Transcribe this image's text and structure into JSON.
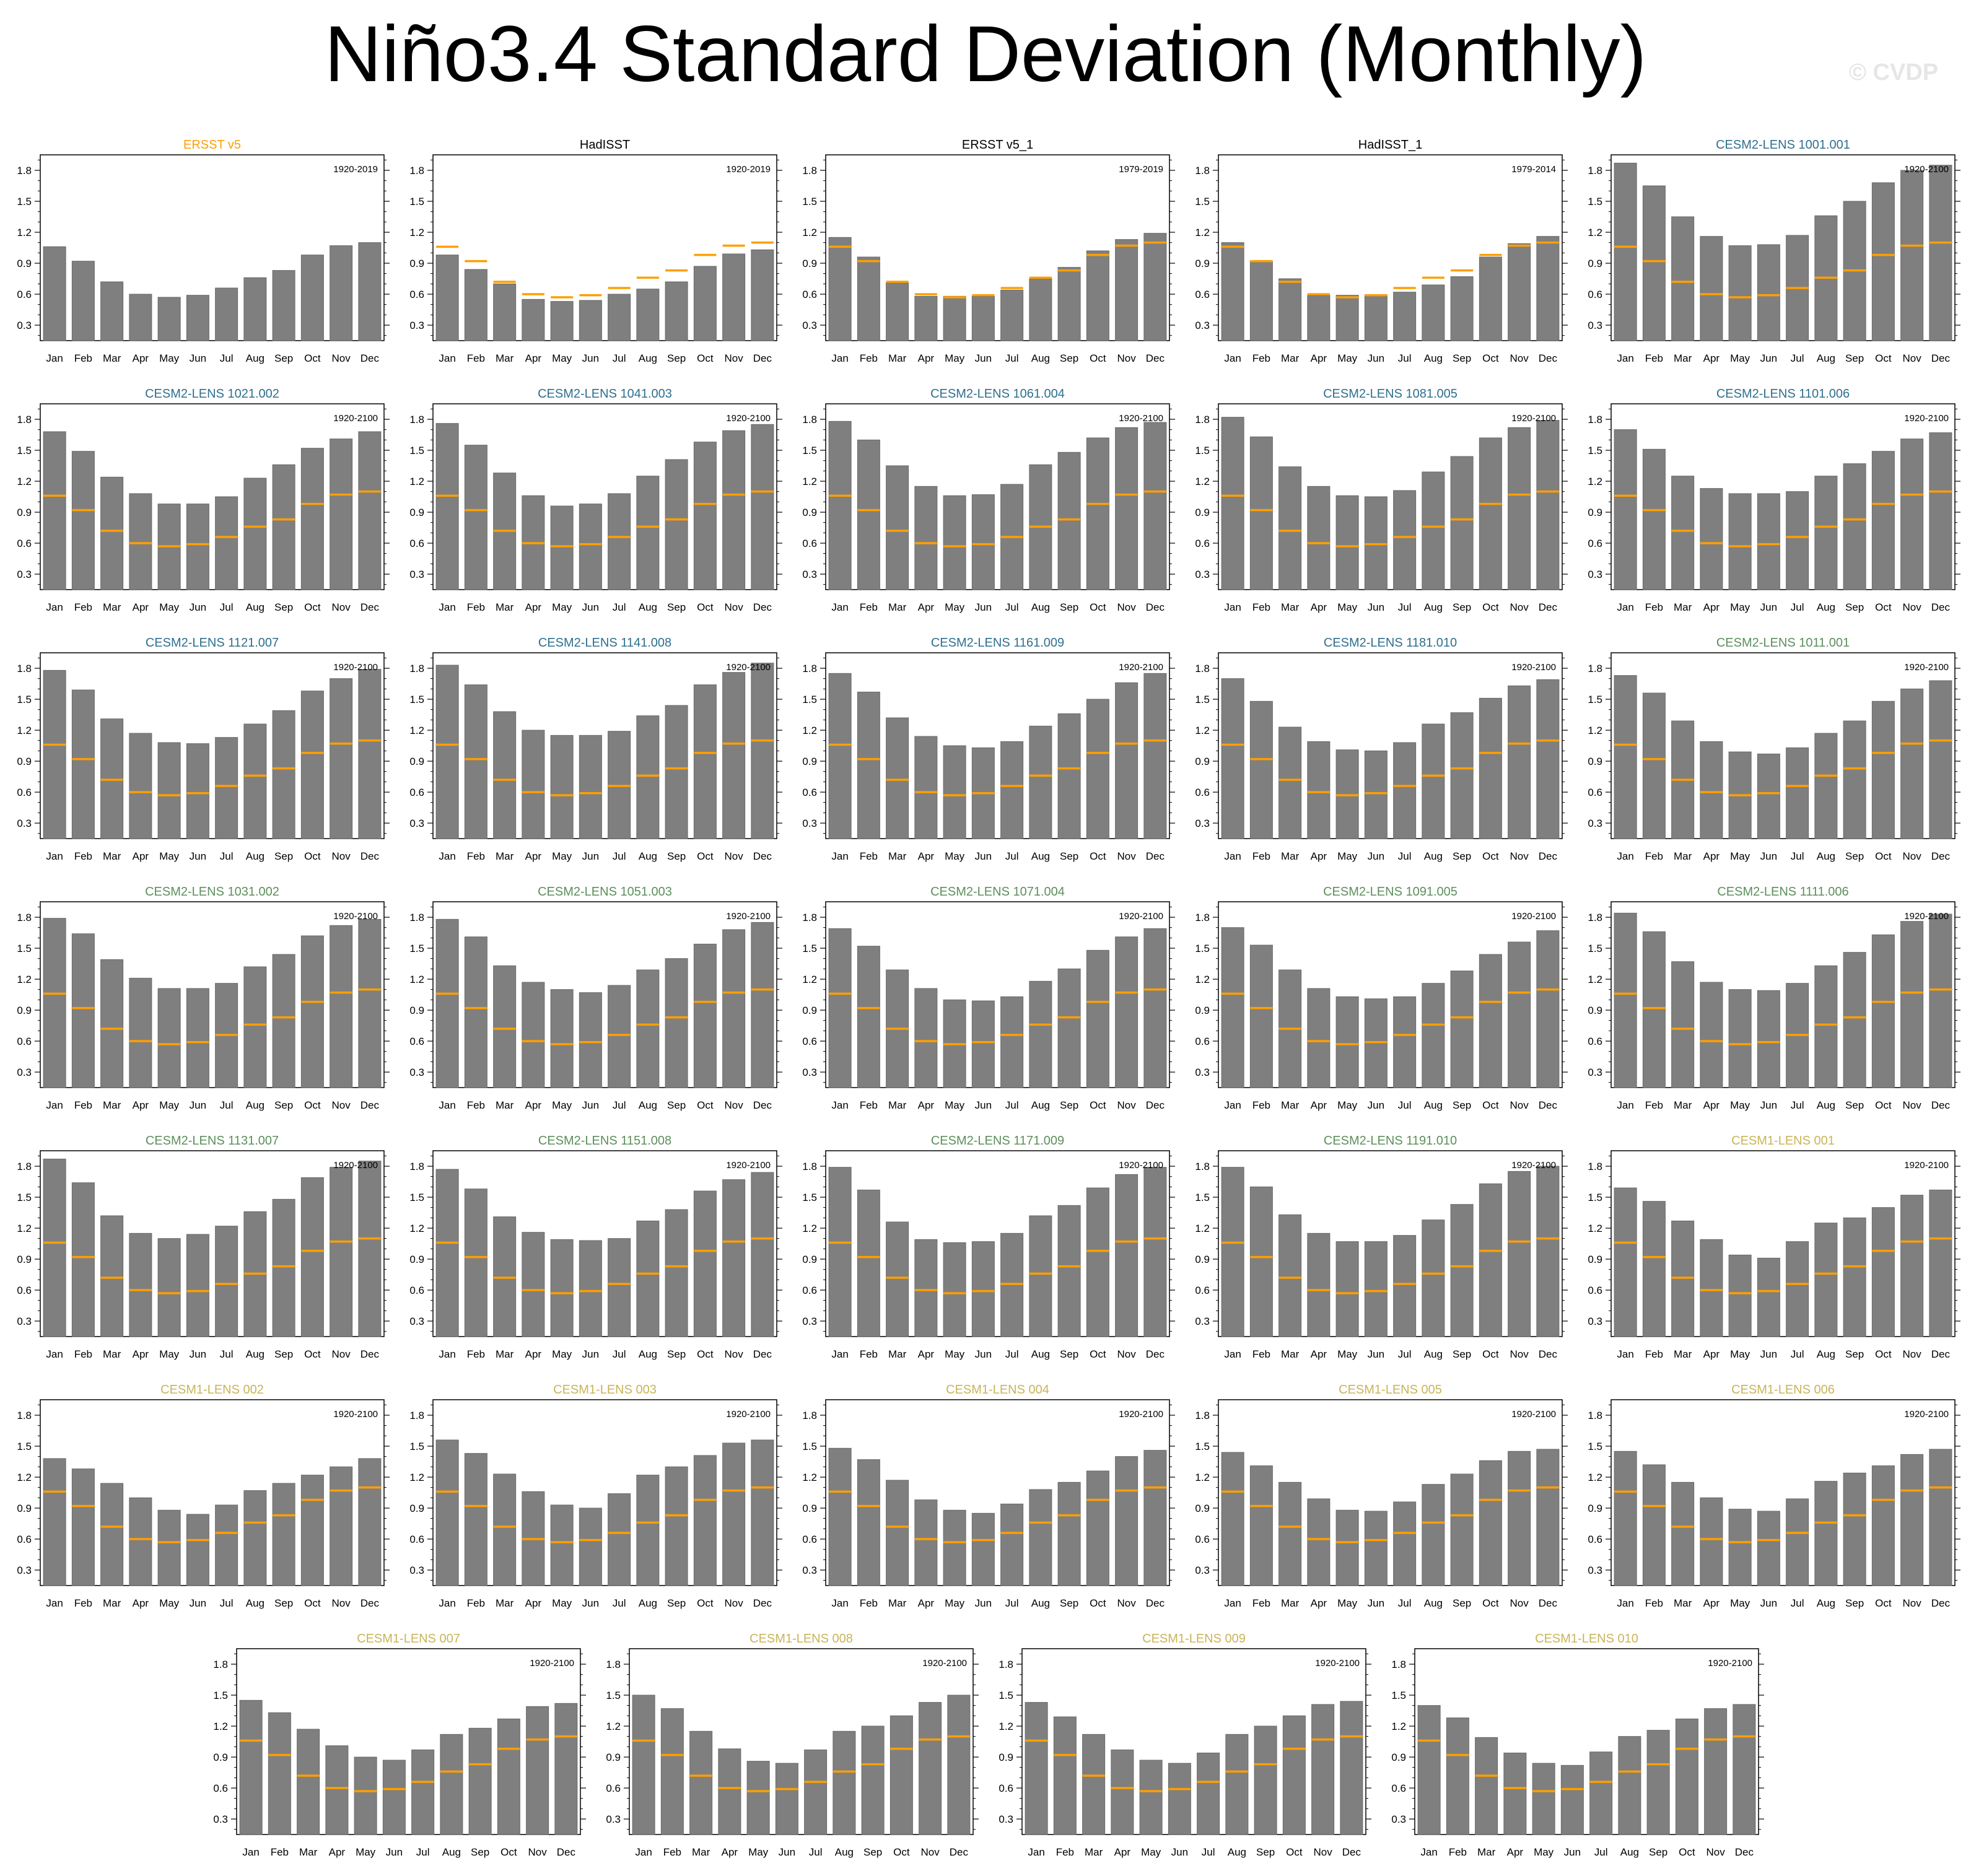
{
  "title": "Niño3.4 Standard Deviation (Monthly)",
  "watermark": "© CVDP",
  "colors": {
    "bar": "#7f7f7f",
    "obs_line": "#ff9f00",
    "title_obs_ersst": "#ff9f00",
    "title_obs_other": "#000000",
    "title_cesm2_blue": "#2e6f8e",
    "title_cesm2_green": "#5c8f5c",
    "title_cesm1": "#c9b458"
  },
  "chart_data": {
    "type": "bar",
    "months": [
      "Jan",
      "Feb",
      "Mar",
      "Apr",
      "May",
      "Jun",
      "Jul",
      "Aug",
      "Sep",
      "Oct",
      "Nov",
      "Dec"
    ],
    "yticks": [
      "0.3",
      "0.6",
      "0.9",
      "1.2",
      "1.5",
      "1.8"
    ],
    "ylim": [
      0.15,
      1.95
    ],
    "reference_line": [
      1.06,
      0.92,
      0.72,
      0.6,
      0.57,
      0.59,
      0.66,
      0.76,
      0.83,
      0.98,
      1.07,
      1.1
    ],
    "panels": [
      {
        "title": "ERSST v5",
        "title_color": "obs_ersst",
        "period": "1920-2019",
        "ref": false,
        "values": [
          1.06,
          0.92,
          0.72,
          0.6,
          0.57,
          0.59,
          0.66,
          0.76,
          0.83,
          0.98,
          1.07,
          1.1
        ]
      },
      {
        "title": "HadISST",
        "title_color": "obs_other",
        "period": "1920-2019",
        "ref": true,
        "values": [
          0.98,
          0.84,
          0.7,
          0.55,
          0.53,
          0.54,
          0.6,
          0.65,
          0.72,
          0.87,
          0.99,
          1.03
        ]
      },
      {
        "title": "ERSST v5_1",
        "title_color": "obs_other",
        "period": "1979-2019",
        "ref": true,
        "values": [
          1.15,
          0.96,
          0.71,
          0.58,
          0.58,
          0.58,
          0.64,
          0.75,
          0.86,
          1.02,
          1.13,
          1.19
        ]
      },
      {
        "title": "HadISST_1",
        "title_color": "obs_other",
        "period": "1979-2014",
        "ref": true,
        "values": [
          1.1,
          0.92,
          0.75,
          0.59,
          0.59,
          0.59,
          0.62,
          0.69,
          0.77,
          0.96,
          1.09,
          1.16
        ]
      },
      {
        "title": "CESM2-LENS 1001.001",
        "title_color": "cesm2_blue",
        "period": "1920-2100",
        "ref": true,
        "values": [
          1.87,
          1.65,
          1.35,
          1.16,
          1.07,
          1.08,
          1.17,
          1.36,
          1.5,
          1.68,
          1.8,
          1.85
        ]
      },
      {
        "title": "CESM2-LENS 1021.002",
        "title_color": "cesm2_blue",
        "period": "1920-2100",
        "ref": true,
        "values": [
          1.68,
          1.49,
          1.24,
          1.08,
          0.98,
          0.98,
          1.05,
          1.23,
          1.36,
          1.52,
          1.61,
          1.68
        ]
      },
      {
        "title": "CESM2-LENS 1041.003",
        "title_color": "cesm2_blue",
        "period": "1920-2100",
        "ref": true,
        "values": [
          1.76,
          1.55,
          1.28,
          1.06,
          0.96,
          0.98,
          1.08,
          1.25,
          1.41,
          1.58,
          1.69,
          1.75
        ]
      },
      {
        "title": "CESM2-LENS 1061.004",
        "title_color": "cesm2_blue",
        "period": "1920-2100",
        "ref": true,
        "values": [
          1.78,
          1.6,
          1.35,
          1.15,
          1.06,
          1.07,
          1.17,
          1.36,
          1.48,
          1.62,
          1.72,
          1.77
        ]
      },
      {
        "title": "CESM2-LENS 1081.005",
        "title_color": "cesm2_blue",
        "period": "1920-2100",
        "ref": true,
        "values": [
          1.82,
          1.63,
          1.34,
          1.15,
          1.06,
          1.05,
          1.11,
          1.29,
          1.44,
          1.62,
          1.72,
          1.79
        ]
      },
      {
        "title": "CESM2-LENS 1101.006",
        "title_color": "cesm2_blue",
        "period": "1920-2100",
        "ref": true,
        "values": [
          1.7,
          1.51,
          1.25,
          1.13,
          1.08,
          1.08,
          1.1,
          1.25,
          1.37,
          1.49,
          1.61,
          1.67
        ]
      },
      {
        "title": "CESM2-LENS 1121.007",
        "title_color": "cesm2_blue",
        "period": "1920-2100",
        "ref": true,
        "values": [
          1.78,
          1.59,
          1.31,
          1.17,
          1.08,
          1.07,
          1.13,
          1.26,
          1.39,
          1.58,
          1.7,
          1.79
        ]
      },
      {
        "title": "CESM2-LENS 1141.008",
        "title_color": "cesm2_blue",
        "period": "1920-2100",
        "ref": true,
        "values": [
          1.83,
          1.64,
          1.38,
          1.2,
          1.15,
          1.15,
          1.19,
          1.34,
          1.44,
          1.64,
          1.76,
          1.85
        ]
      },
      {
        "title": "CESM2-LENS 1161.009",
        "title_color": "cesm2_blue",
        "period": "1920-2100",
        "ref": true,
        "values": [
          1.75,
          1.57,
          1.32,
          1.14,
          1.05,
          1.03,
          1.09,
          1.24,
          1.36,
          1.5,
          1.66,
          1.75
        ]
      },
      {
        "title": "CESM2-LENS 1181.010",
        "title_color": "cesm2_blue",
        "period": "1920-2100",
        "ref": true,
        "values": [
          1.7,
          1.48,
          1.23,
          1.09,
          1.01,
          1.0,
          1.08,
          1.26,
          1.37,
          1.51,
          1.63,
          1.69
        ]
      },
      {
        "title": "CESM2-LENS 1011.001",
        "title_color": "cesm2_green",
        "period": "1920-2100",
        "ref": true,
        "values": [
          1.73,
          1.56,
          1.29,
          1.09,
          0.99,
          0.97,
          1.03,
          1.17,
          1.29,
          1.48,
          1.6,
          1.68
        ]
      },
      {
        "title": "CESM2-LENS 1031.002",
        "title_color": "cesm2_green",
        "period": "1920-2100",
        "ref": true,
        "values": [
          1.79,
          1.64,
          1.39,
          1.21,
          1.11,
          1.11,
          1.16,
          1.32,
          1.44,
          1.62,
          1.72,
          1.78
        ]
      },
      {
        "title": "CESM2-LENS 1051.003",
        "title_color": "cesm2_green",
        "period": "1920-2100",
        "ref": true,
        "values": [
          1.78,
          1.61,
          1.33,
          1.17,
          1.1,
          1.07,
          1.14,
          1.29,
          1.4,
          1.54,
          1.68,
          1.75
        ]
      },
      {
        "title": "CESM2-LENS 1071.004",
        "title_color": "cesm2_green",
        "period": "1920-2100",
        "ref": true,
        "values": [
          1.69,
          1.52,
          1.29,
          1.11,
          1.0,
          0.99,
          1.03,
          1.18,
          1.3,
          1.48,
          1.61,
          1.69
        ]
      },
      {
        "title": "CESM2-LENS 1091.005",
        "title_color": "cesm2_green",
        "period": "1920-2100",
        "ref": true,
        "values": [
          1.7,
          1.53,
          1.29,
          1.11,
          1.03,
          1.01,
          1.03,
          1.16,
          1.28,
          1.44,
          1.56,
          1.67
        ]
      },
      {
        "title": "CESM2-LENS 1111.006",
        "title_color": "cesm2_green",
        "period": "1920-2100",
        "ref": true,
        "values": [
          1.84,
          1.66,
          1.37,
          1.17,
          1.1,
          1.09,
          1.16,
          1.33,
          1.46,
          1.63,
          1.76,
          1.83
        ]
      },
      {
        "title": "CESM2-LENS 1131.007",
        "title_color": "cesm2_green",
        "period": "1920-2100",
        "ref": true,
        "values": [
          1.87,
          1.64,
          1.32,
          1.15,
          1.1,
          1.14,
          1.22,
          1.36,
          1.48,
          1.69,
          1.79,
          1.85
        ]
      },
      {
        "title": "CESM2-LENS 1151.008",
        "title_color": "cesm2_green",
        "period": "1920-2100",
        "ref": true,
        "values": [
          1.77,
          1.58,
          1.31,
          1.16,
          1.09,
          1.08,
          1.1,
          1.27,
          1.38,
          1.56,
          1.67,
          1.74
        ]
      },
      {
        "title": "CESM2-LENS 1171.009",
        "title_color": "cesm2_green",
        "period": "1920-2100",
        "ref": true,
        "values": [
          1.79,
          1.57,
          1.26,
          1.09,
          1.06,
          1.07,
          1.15,
          1.32,
          1.42,
          1.59,
          1.72,
          1.79
        ]
      },
      {
        "title": "CESM2-LENS 1191.010",
        "title_color": "cesm2_green",
        "period": "1920-2100",
        "ref": true,
        "values": [
          1.79,
          1.6,
          1.33,
          1.15,
          1.07,
          1.07,
          1.13,
          1.28,
          1.43,
          1.63,
          1.75,
          1.8
        ]
      },
      {
        "title": "CESM1-LENS 001",
        "title_color": "cesm1",
        "period": "1920-2100",
        "ref": true,
        "values": [
          1.59,
          1.46,
          1.27,
          1.09,
          0.94,
          0.91,
          1.07,
          1.25,
          1.3,
          1.4,
          1.52,
          1.57
        ]
      },
      {
        "title": "CESM1-LENS 002",
        "title_color": "cesm1",
        "period": "1920-2100",
        "ref": true,
        "values": [
          1.38,
          1.28,
          1.14,
          1.0,
          0.88,
          0.84,
          0.93,
          1.07,
          1.14,
          1.22,
          1.3,
          1.38
        ]
      },
      {
        "title": "CESM1-LENS 003",
        "title_color": "cesm1",
        "period": "1920-2100",
        "ref": true,
        "values": [
          1.56,
          1.43,
          1.23,
          1.06,
          0.93,
          0.9,
          1.04,
          1.22,
          1.3,
          1.41,
          1.53,
          1.56
        ]
      },
      {
        "title": "CESM1-LENS 004",
        "title_color": "cesm1",
        "period": "1920-2100",
        "ref": true,
        "values": [
          1.48,
          1.37,
          1.17,
          0.98,
          0.88,
          0.85,
          0.94,
          1.08,
          1.15,
          1.26,
          1.4,
          1.46
        ]
      },
      {
        "title": "CESM1-LENS 005",
        "title_color": "cesm1",
        "period": "1920-2100",
        "ref": true,
        "values": [
          1.44,
          1.31,
          1.15,
          0.99,
          0.88,
          0.87,
          0.96,
          1.13,
          1.23,
          1.36,
          1.45,
          1.47
        ]
      },
      {
        "title": "CESM1-LENS 006",
        "title_color": "cesm1",
        "period": "1920-2100",
        "ref": true,
        "values": [
          1.45,
          1.32,
          1.15,
          1.0,
          0.89,
          0.87,
          0.99,
          1.16,
          1.24,
          1.31,
          1.42,
          1.47
        ]
      },
      {
        "title": "CESM1-LENS 007",
        "title_color": "cesm1",
        "period": "1920-2100",
        "ref": true,
        "values": [
          1.45,
          1.33,
          1.17,
          1.01,
          0.9,
          0.87,
          0.97,
          1.12,
          1.18,
          1.27,
          1.39,
          1.42
        ]
      },
      {
        "title": "CESM1-LENS 008",
        "title_color": "cesm1",
        "period": "1920-2100",
        "ref": true,
        "values": [
          1.5,
          1.37,
          1.15,
          0.98,
          0.86,
          0.84,
          0.97,
          1.15,
          1.2,
          1.3,
          1.43,
          1.5
        ]
      },
      {
        "title": "CESM1-LENS 009",
        "title_color": "cesm1",
        "period": "1920-2100",
        "ref": true,
        "values": [
          1.43,
          1.29,
          1.12,
          0.97,
          0.87,
          0.84,
          0.94,
          1.12,
          1.2,
          1.3,
          1.41,
          1.44
        ]
      },
      {
        "title": "CESM1-LENS 010",
        "title_color": "cesm1",
        "period": "1920-2100",
        "ref": true,
        "values": [
          1.4,
          1.28,
          1.09,
          0.94,
          0.84,
          0.82,
          0.95,
          1.1,
          1.16,
          1.27,
          1.37,
          1.41
        ]
      }
    ]
  }
}
